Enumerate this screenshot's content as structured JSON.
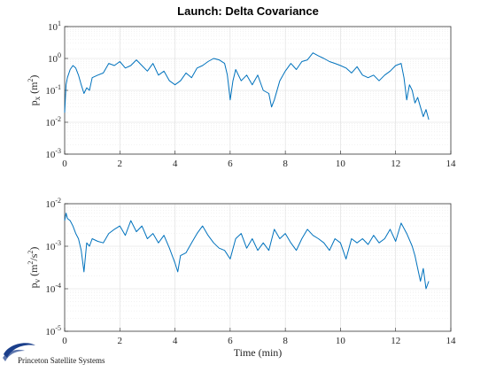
{
  "title": "Launch: Delta Covariance",
  "logo": {
    "text": "Princeton Satellite Systems"
  },
  "colors": {
    "series": "#0072BD",
    "logo_blue": "#1b3f8b"
  },
  "chart_data": [
    {
      "type": "line",
      "title": "Launch: Delta Covariance",
      "xlabel": "",
      "ylabel": "p_x (m^2)",
      "ylabel_parts": {
        "base": "p",
        "sub": "x",
        "unit_open": "(m",
        "unit_sup": "2",
        "unit_close": ")"
      },
      "xlim": [
        0,
        14
      ],
      "ylim": [
        0.001,
        10
      ],
      "y_scale": "log",
      "x_ticks": [
        "0",
        "2",
        "4",
        "6",
        "8",
        "10",
        "12",
        "14"
      ],
      "y_ticks": [
        {
          "base": "10",
          "exp": "-3"
        },
        {
          "base": "10",
          "exp": "-2"
        },
        {
          "base": "10",
          "exp": "-1"
        },
        {
          "base": "10",
          "exp": "0"
        },
        {
          "base": "10",
          "exp": "1"
        }
      ],
      "grid": true,
      "series": [
        {
          "x": [
            0,
            0.05,
            0.1,
            0.2,
            0.3,
            0.4,
            0.5,
            0.6,
            0.7,
            0.8,
            0.9,
            1.0,
            1.2,
            1.4,
            1.6,
            1.8,
            2.0,
            2.2,
            2.4,
            2.6,
            2.8,
            3.0,
            3.2,
            3.4,
            3.6,
            3.8,
            4.0,
            4.2,
            4.4,
            4.6,
            4.8,
            5.0,
            5.2,
            5.4,
            5.6,
            5.8,
            5.9,
            6.0,
            6.1,
            6.2,
            6.4,
            6.6,
            6.8,
            7.0,
            7.2,
            7.4,
            7.5,
            7.6,
            7.8,
            8.0,
            8.2,
            8.4,
            8.6,
            8.8,
            9.0,
            9.2,
            9.4,
            9.6,
            9.8,
            10.0,
            10.2,
            10.4,
            10.6,
            10.8,
            11.0,
            11.2,
            11.4,
            11.6,
            11.8,
            12.0,
            12.2,
            12.3,
            12.4,
            12.5,
            12.6,
            12.7,
            12.8,
            12.9,
            13.0,
            13.1,
            13.2
          ],
          "y": [
            0.02,
            0.15,
            0.25,
            0.45,
            0.6,
            0.5,
            0.3,
            0.15,
            0.08,
            0.12,
            0.1,
            0.25,
            0.3,
            0.35,
            0.7,
            0.6,
            0.8,
            0.5,
            0.6,
            0.9,
            0.6,
            0.4,
            0.7,
            0.3,
            0.4,
            0.2,
            0.15,
            0.2,
            0.35,
            0.25,
            0.5,
            0.6,
            0.8,
            1.0,
            0.9,
            0.7,
            0.3,
            0.05,
            0.2,
            0.45,
            0.2,
            0.3,
            0.15,
            0.3,
            0.1,
            0.08,
            0.03,
            0.05,
            0.2,
            0.4,
            0.7,
            0.45,
            0.8,
            0.9,
            1.5,
            1.2,
            1.0,
            0.8,
            0.7,
            0.6,
            0.5,
            0.35,
            0.55,
            0.3,
            0.25,
            0.3,
            0.2,
            0.3,
            0.4,
            0.6,
            0.7,
            0.25,
            0.05,
            0.15,
            0.1,
            0.04,
            0.06,
            0.03,
            0.015,
            0.025,
            0.012
          ]
        }
      ]
    },
    {
      "type": "line",
      "xlabel": "Time (min)",
      "ylabel": "p_v (m^2/s^2)",
      "ylabel_parts": {
        "base": "p",
        "sub": "v",
        "unit_open": "(m",
        "unit_sup": "2",
        "unit_mid": "/s",
        "unit_sup2": "2",
        "unit_close": ")"
      },
      "xlim": [
        0,
        14
      ],
      "ylim": [
        1e-05,
        0.01
      ],
      "y_scale": "log",
      "x_ticks": [
        "0",
        "2",
        "4",
        "6",
        "8",
        "10",
        "12",
        "14"
      ],
      "y_ticks": [
        {
          "base": "10",
          "exp": "-5"
        },
        {
          "base": "10",
          "exp": "-4"
        },
        {
          "base": "10",
          "exp": "-3"
        },
        {
          "base": "10",
          "exp": "-2"
        }
      ],
      "grid": true,
      "series": [
        {
          "x": [
            0,
            0.05,
            0.1,
            0.2,
            0.3,
            0.4,
            0.5,
            0.6,
            0.7,
            0.8,
            0.9,
            1.0,
            1.2,
            1.4,
            1.6,
            1.8,
            2.0,
            2.2,
            2.4,
            2.6,
            2.8,
            3.0,
            3.2,
            3.4,
            3.6,
            3.8,
            4.0,
            4.1,
            4.2,
            4.4,
            4.6,
            4.8,
            5.0,
            5.2,
            5.4,
            5.6,
            5.8,
            6.0,
            6.2,
            6.4,
            6.6,
            6.8,
            7.0,
            7.2,
            7.4,
            7.6,
            7.8,
            8.0,
            8.2,
            8.4,
            8.6,
            8.8,
            9.0,
            9.2,
            9.4,
            9.6,
            9.8,
            10.0,
            10.2,
            10.4,
            10.6,
            10.8,
            11.0,
            11.2,
            11.4,
            11.6,
            11.8,
            12.0,
            12.2,
            12.4,
            12.6,
            12.7,
            12.8,
            12.9,
            13.0,
            13.1,
            13.2
          ],
          "y": [
            0.004,
            0.006,
            0.0045,
            0.004,
            0.003,
            0.002,
            0.0015,
            0.0008,
            0.00025,
            0.0012,
            0.001,
            0.0015,
            0.0013,
            0.0012,
            0.002,
            0.0025,
            0.003,
            0.0018,
            0.004,
            0.0022,
            0.003,
            0.0015,
            0.002,
            0.0012,
            0.0018,
            0.0009,
            0.0004,
            0.00025,
            0.0006,
            0.0007,
            0.0012,
            0.002,
            0.003,
            0.0018,
            0.0012,
            0.0009,
            0.0008,
            0.0005,
            0.0015,
            0.002,
            0.0009,
            0.0015,
            0.0008,
            0.0012,
            0.0008,
            0.0025,
            0.0015,
            0.002,
            0.0012,
            0.0008,
            0.0015,
            0.0025,
            0.0018,
            0.0015,
            0.0012,
            0.0008,
            0.0015,
            0.0012,
            0.0005,
            0.0015,
            0.0012,
            0.0015,
            0.0011,
            0.0018,
            0.0012,
            0.0015,
            0.0025,
            0.0013,
            0.0035,
            0.002,
            0.001,
            0.0006,
            0.0003,
            0.00015,
            0.0003,
            0.0001,
            0.00015
          ]
        }
      ]
    }
  ]
}
